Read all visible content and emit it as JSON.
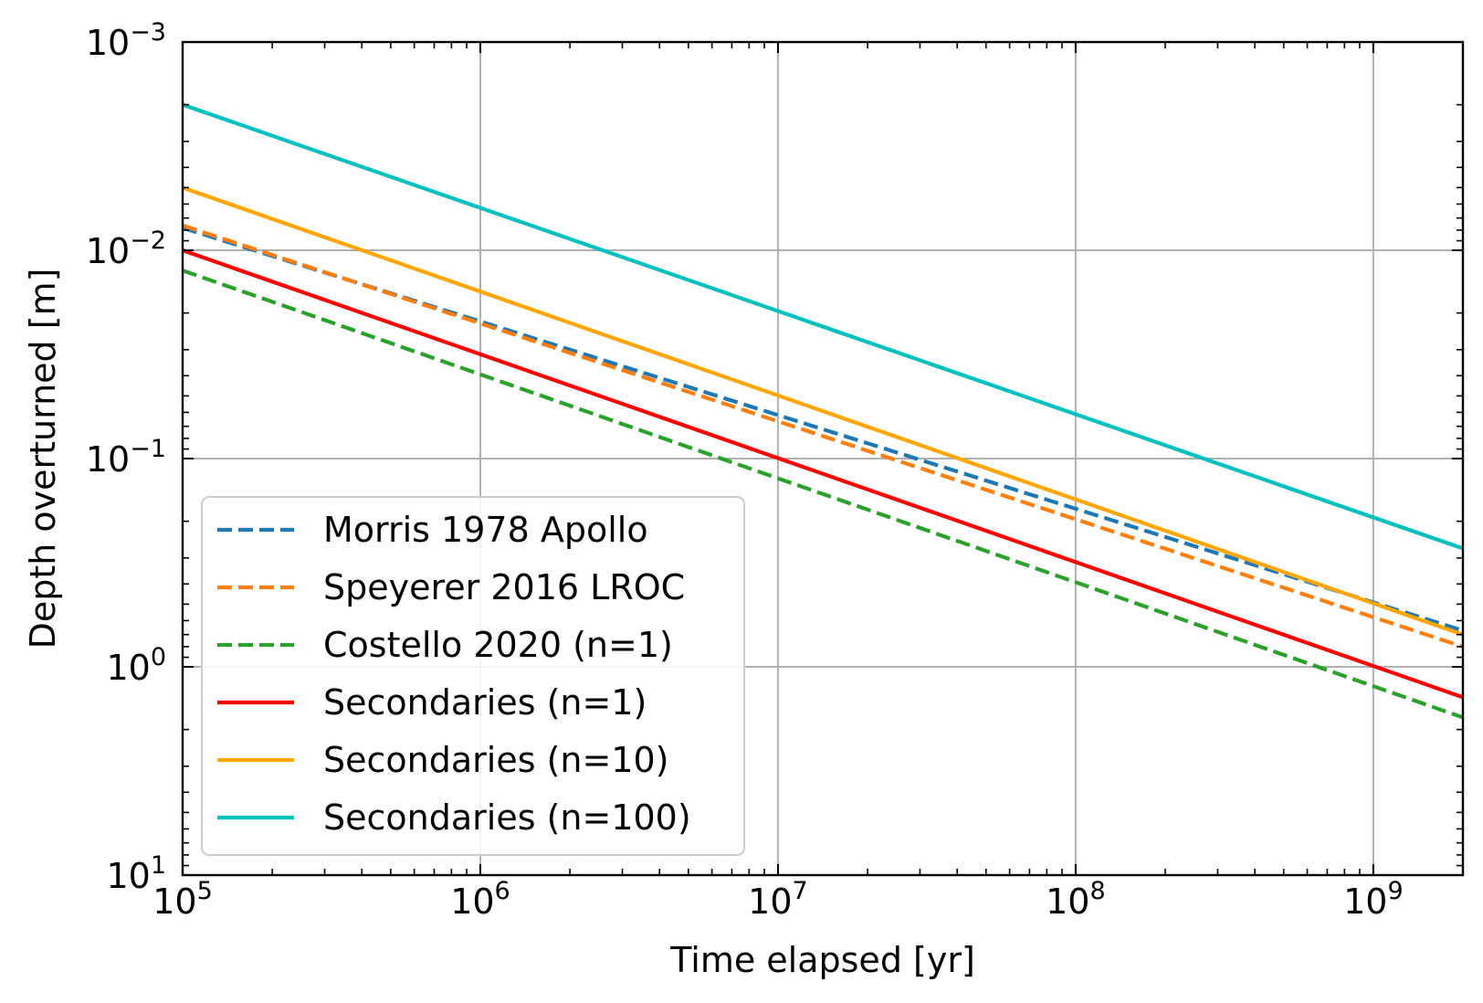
{
  "chart_data": {
    "type": "line",
    "xlabel": "Time elapsed [yr]",
    "ylabel": "Depth overturned [m]",
    "x_scale": "log",
    "y_scale": "log",
    "y_inverted": true,
    "xlim": [
      100000,
      2000000000
    ],
    "ylim": [
      0.001,
      10
    ],
    "grid": true,
    "legend_location": "lower-left",
    "x_ticks": [
      {
        "base": "10",
        "exp": "5",
        "value": 100000
      },
      {
        "base": "10",
        "exp": "6",
        "value": 1000000
      },
      {
        "base": "10",
        "exp": "7",
        "value": 10000000
      },
      {
        "base": "10",
        "exp": "8",
        "value": 100000000
      },
      {
        "base": "10",
        "exp": "9",
        "value": 1000000000
      }
    ],
    "y_ticks": [
      {
        "base": "10",
        "exp": "−3",
        "value": 0.001
      },
      {
        "base": "10",
        "exp": "−2",
        "value": 0.01
      },
      {
        "base": "10",
        "exp": "−1",
        "value": 0.1
      },
      {
        "base": "10",
        "exp": "0",
        "value": 1
      },
      {
        "base": "10",
        "exp": "1",
        "value": 10
      }
    ],
    "series": [
      {
        "name": "Morris 1978 Apollo",
        "color": "#1f77b4",
        "style": "dashed",
        "points": [
          [
            100000,
            0.0078
          ],
          [
            2000000000,
            0.67
          ]
        ]
      },
      {
        "name": "Speyerer 2016 LROC",
        "color": "#ff7f0e",
        "style": "dashed",
        "points": [
          [
            100000,
            0.0076
          ],
          [
            2000000000,
            0.8
          ]
        ]
      },
      {
        "name": "Costello 2020 (n=1)",
        "color": "#2ca02c",
        "style": "dashed",
        "points": [
          [
            100000,
            0.0125
          ],
          [
            2000000000,
            1.75
          ]
        ]
      },
      {
        "name": "Secondaries (n=1)",
        "color": "#ff0000",
        "style": "solid",
        "points": [
          [
            100000,
            0.01
          ],
          [
            2000000000,
            1.4
          ]
        ]
      },
      {
        "name": "Secondaries (n=10)",
        "color": "#ffa500",
        "style": "solid",
        "points": [
          [
            100000,
            0.005
          ],
          [
            2000000000,
            0.7
          ]
        ]
      },
      {
        "name": "Secondaries (n=100)",
        "color": "#00bfbf",
        "style": "solid",
        "points": [
          [
            100000,
            0.002
          ],
          [
            2000000000,
            0.27
          ]
        ]
      }
    ]
  }
}
